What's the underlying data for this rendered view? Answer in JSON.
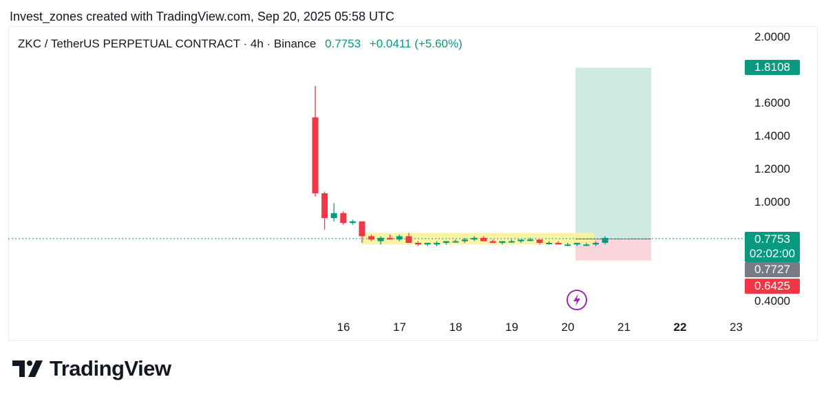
{
  "header": {
    "text": "Invest_zones created with TradingView.com, Sep 20, 2025 05:58 UTC"
  },
  "legend": {
    "symbol": "ZKC / TetherUS PERPETUAL CONTRACT · 4h · Binance",
    "price": "0.7753",
    "change": "+0.0411 (+5.60%)"
  },
  "footer": {
    "brand": "TradingView"
  },
  "price_tags": {
    "target": "1.8108",
    "current": "0.7753",
    "countdown": "02:02:00",
    "entry": "0.7727",
    "stop": "0.6425"
  },
  "colors": {
    "up": "#089981",
    "down": "#f23645",
    "target_zone": "#cfe9e3",
    "stop_zone": "#fbd6dc",
    "range_box": "#fbf39a"
  },
  "chart_data": {
    "type": "candlestick",
    "timeframe": "4h",
    "x_labels": [
      "16",
      "17",
      "18",
      "19",
      "20",
      "21",
      "22",
      "23"
    ],
    "y_ticks": [
      2.0,
      1.6,
      1.4,
      1.2,
      1.0,
      0.4
    ],
    "y_tick_labels": [
      "2.0000",
      "1.6000",
      "1.4000",
      "1.2000",
      "1.0000",
      "0.4000"
    ],
    "ylim": [
      0.4,
      2.0
    ],
    "last_price": 0.7753,
    "candles": [
      {
        "o": 1.51,
        "h": 1.7,
        "l": 1.03,
        "c": 1.05
      },
      {
        "o": 1.05,
        "h": 1.06,
        "l": 0.83,
        "c": 0.9
      },
      {
        "o": 0.9,
        "h": 0.99,
        "l": 0.88,
        "c": 0.93
      },
      {
        "o": 0.93,
        "h": 0.94,
        "l": 0.86,
        "c": 0.87
      },
      {
        "o": 0.87,
        "h": 0.89,
        "l": 0.86,
        "c": 0.88
      },
      {
        "o": 0.88,
        "h": 0.88,
        "l": 0.75,
        "c": 0.79
      },
      {
        "o": 0.79,
        "h": 0.8,
        "l": 0.76,
        "c": 0.77
      },
      {
        "o": 0.76,
        "h": 0.79,
        "l": 0.74,
        "c": 0.78
      },
      {
        "o": 0.78,
        "h": 0.8,
        "l": 0.77,
        "c": 0.77
      },
      {
        "o": 0.77,
        "h": 0.8,
        "l": 0.76,
        "c": 0.79
      },
      {
        "o": 0.79,
        "h": 0.81,
        "l": 0.75,
        "c": 0.75
      },
      {
        "o": 0.75,
        "h": 0.76,
        "l": 0.73,
        "c": 0.74
      },
      {
        "o": 0.74,
        "h": 0.75,
        "l": 0.73,
        "c": 0.75
      },
      {
        "o": 0.74,
        "h": 0.76,
        "l": 0.73,
        "c": 0.75
      },
      {
        "o": 0.75,
        "h": 0.76,
        "l": 0.74,
        "c": 0.76
      },
      {
        "o": 0.76,
        "h": 0.77,
        "l": 0.75,
        "c": 0.76
      },
      {
        "o": 0.76,
        "h": 0.78,
        "l": 0.75,
        "c": 0.77
      },
      {
        "o": 0.77,
        "h": 0.79,
        "l": 0.76,
        "c": 0.78
      },
      {
        "o": 0.78,
        "h": 0.79,
        "l": 0.76,
        "c": 0.76
      },
      {
        "o": 0.76,
        "h": 0.77,
        "l": 0.75,
        "c": 0.75
      },
      {
        "o": 0.75,
        "h": 0.76,
        "l": 0.74,
        "c": 0.76
      },
      {
        "o": 0.76,
        "h": 0.77,
        "l": 0.75,
        "c": 0.76
      },
      {
        "o": 0.76,
        "h": 0.77,
        "l": 0.75,
        "c": 0.77
      },
      {
        "o": 0.77,
        "h": 0.78,
        "l": 0.76,
        "c": 0.77
      },
      {
        "o": 0.77,
        "h": 0.77,
        "l": 0.74,
        "c": 0.75
      },
      {
        "o": 0.75,
        "h": 0.76,
        "l": 0.74,
        "c": 0.75
      },
      {
        "o": 0.75,
        "h": 0.76,
        "l": 0.74,
        "c": 0.74
      },
      {
        "o": 0.74,
        "h": 0.75,
        "l": 0.73,
        "c": 0.74
      },
      {
        "o": 0.74,
        "h": 0.75,
        "l": 0.73,
        "c": 0.75
      },
      {
        "o": 0.74,
        "h": 0.75,
        "l": 0.73,
        "c": 0.74
      },
      {
        "o": 0.74,
        "h": 0.76,
        "l": 0.73,
        "c": 0.75
      },
      {
        "o": 0.75,
        "h": 0.79,
        "l": 0.74,
        "c": 0.78
      }
    ],
    "range_box": {
      "low": 0.74,
      "high": 0.81
    },
    "position": {
      "type": "long",
      "entry": 0.7727,
      "target": 1.8108,
      "stop": 0.6425
    }
  }
}
